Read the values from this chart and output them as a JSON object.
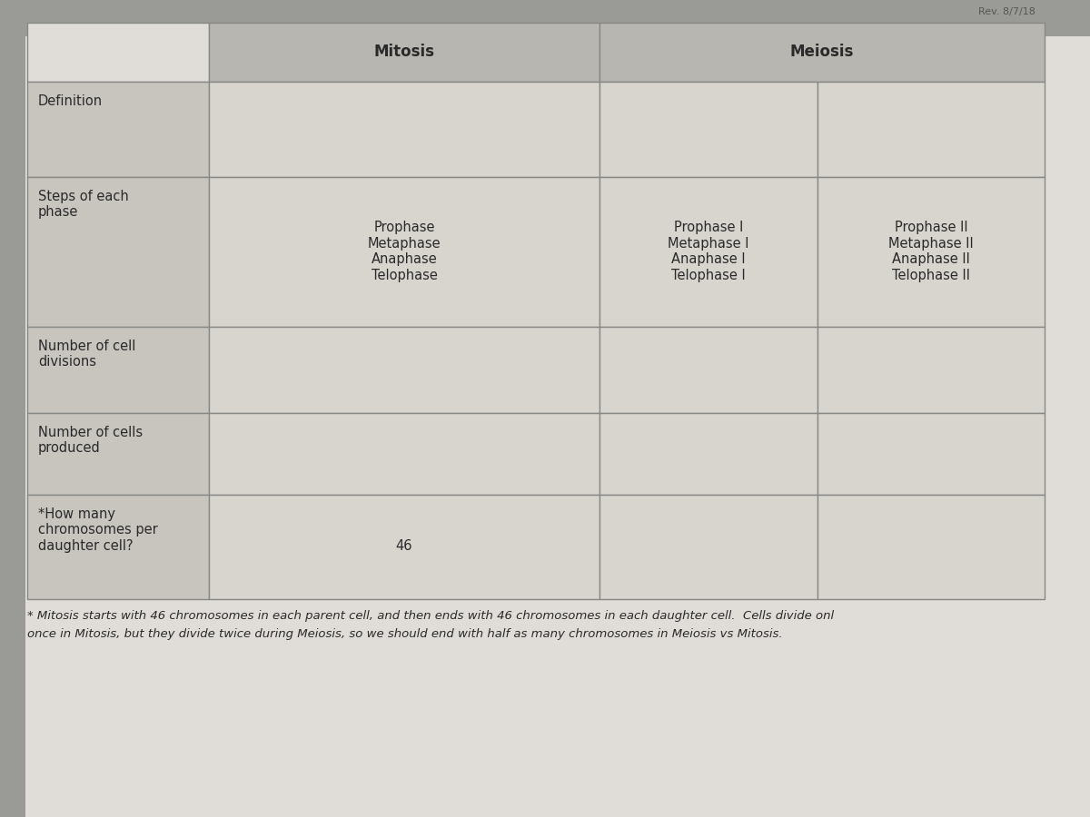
{
  "title_rev": "Rev. 8/7/18",
  "col_headers": [
    "Mitosis",
    "Meiosis"
  ],
  "row_labels": [
    "Definition",
    "Steps of each\nphase",
    "Number of cell\ndivisions",
    "Number of cells\nproduced",
    "*How many\nchromosomes per\ndaughter cell?"
  ],
  "mitosis_content": [
    "",
    "Prophase\nMetaphase\nAnaphase\nTelophase",
    "",
    "",
    "46"
  ],
  "meiosis_col1": [
    "",
    "Prophase I\nMetaphase I\nAnaphase I\nTelophase I",
    "",
    "",
    ""
  ],
  "meiosis_col2": [
    "",
    "Prophase II\nMetaphase II\nAnaphase II\nTelophase II",
    "",
    "",
    ""
  ],
  "footnote_line1": "* Mitosis starts with 46 chromosomes in each parent cell, and then ends with 46 chromosomes in each daughter cell.  Cells divide onl",
  "footnote_line2": "once in Mitosis, but they divide twice during Meiosis, so we should end with half as many chromosomes in Meiosis vs Mitosis.",
  "outer_bg": "#b8b8b4",
  "paper_bg": "#e0ddd8",
  "header_bg": "#b8b6b0",
  "cell_bg_light": "#d8d5cf",
  "cell_bg_mid": "#ccc9c3",
  "label_bg": "#c8c5bf",
  "line_color": "#888884",
  "text_color": "#2a2a2a",
  "header_font_size": 12,
  "label_font_size": 10.5,
  "content_font_size": 10.5,
  "footnote_font_size": 9.5
}
